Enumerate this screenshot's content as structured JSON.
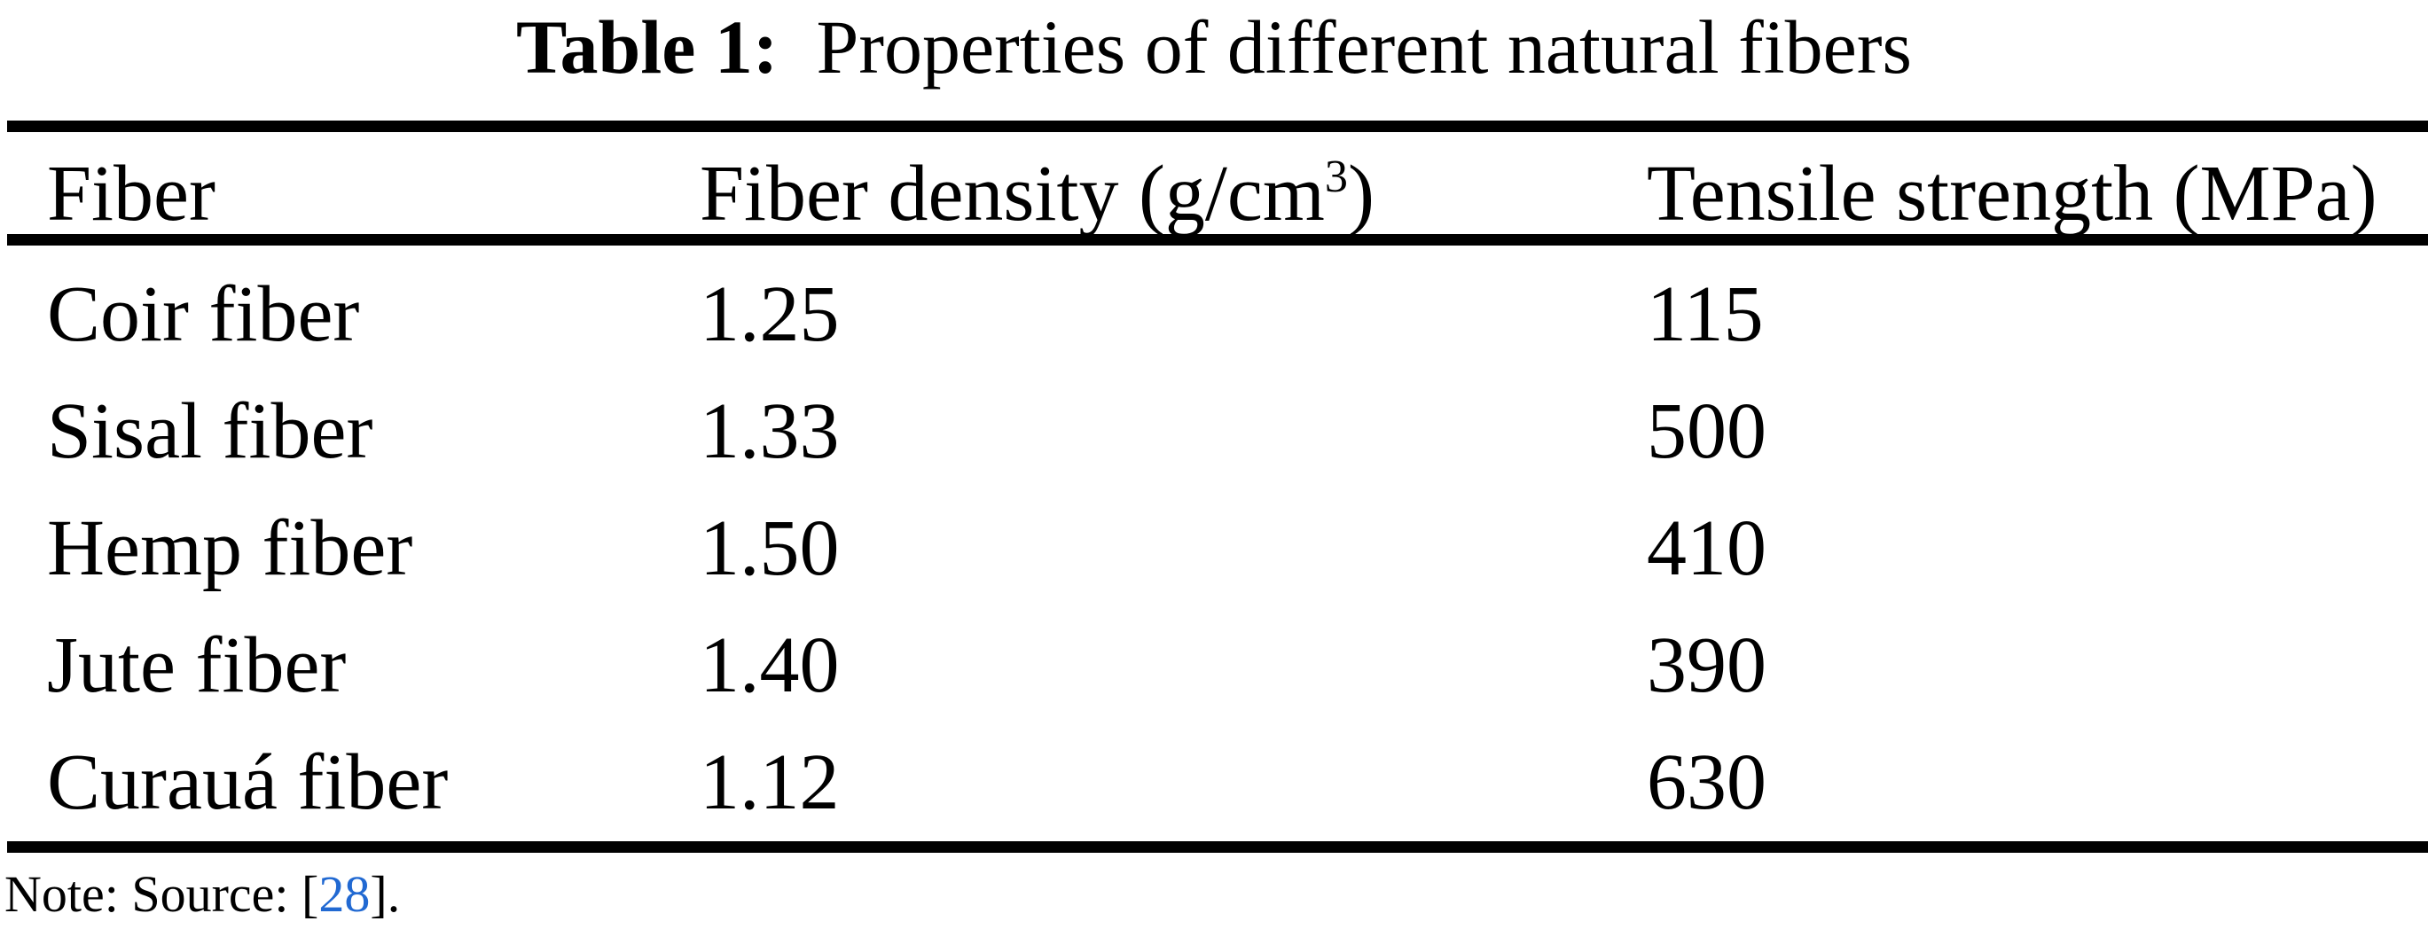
{
  "colors": {
    "text": "#000000",
    "background": "#ffffff",
    "citation_blue": "#2169d2"
  },
  "caption": {
    "label": "Table 1:",
    "title": "Properties of different natural fibers"
  },
  "table": {
    "columns": [
      {
        "label": "Fiber"
      },
      {
        "prefix": "Fiber density (g/cm",
        "sup": "3",
        "suffix": ")"
      },
      {
        "label": "Tensile strength (MPa)"
      }
    ],
    "rows": [
      {
        "fiber": "Coir fiber",
        "density": "1.25",
        "strength": "115"
      },
      {
        "fiber": "Sisal fiber",
        "density": "1.33",
        "strength": "500"
      },
      {
        "fiber": "Hemp fiber",
        "density": "1.50",
        "strength": "410"
      },
      {
        "fiber": "Jute fiber",
        "density": "1.40",
        "strength": "390"
      },
      {
        "fiber": "Curauá fiber",
        "density": "1.12",
        "strength": "630"
      }
    ]
  },
  "note": {
    "prefix": "Note: Source:",
    "open": "[",
    "ref": "28",
    "close": "]",
    "suffix": "."
  }
}
